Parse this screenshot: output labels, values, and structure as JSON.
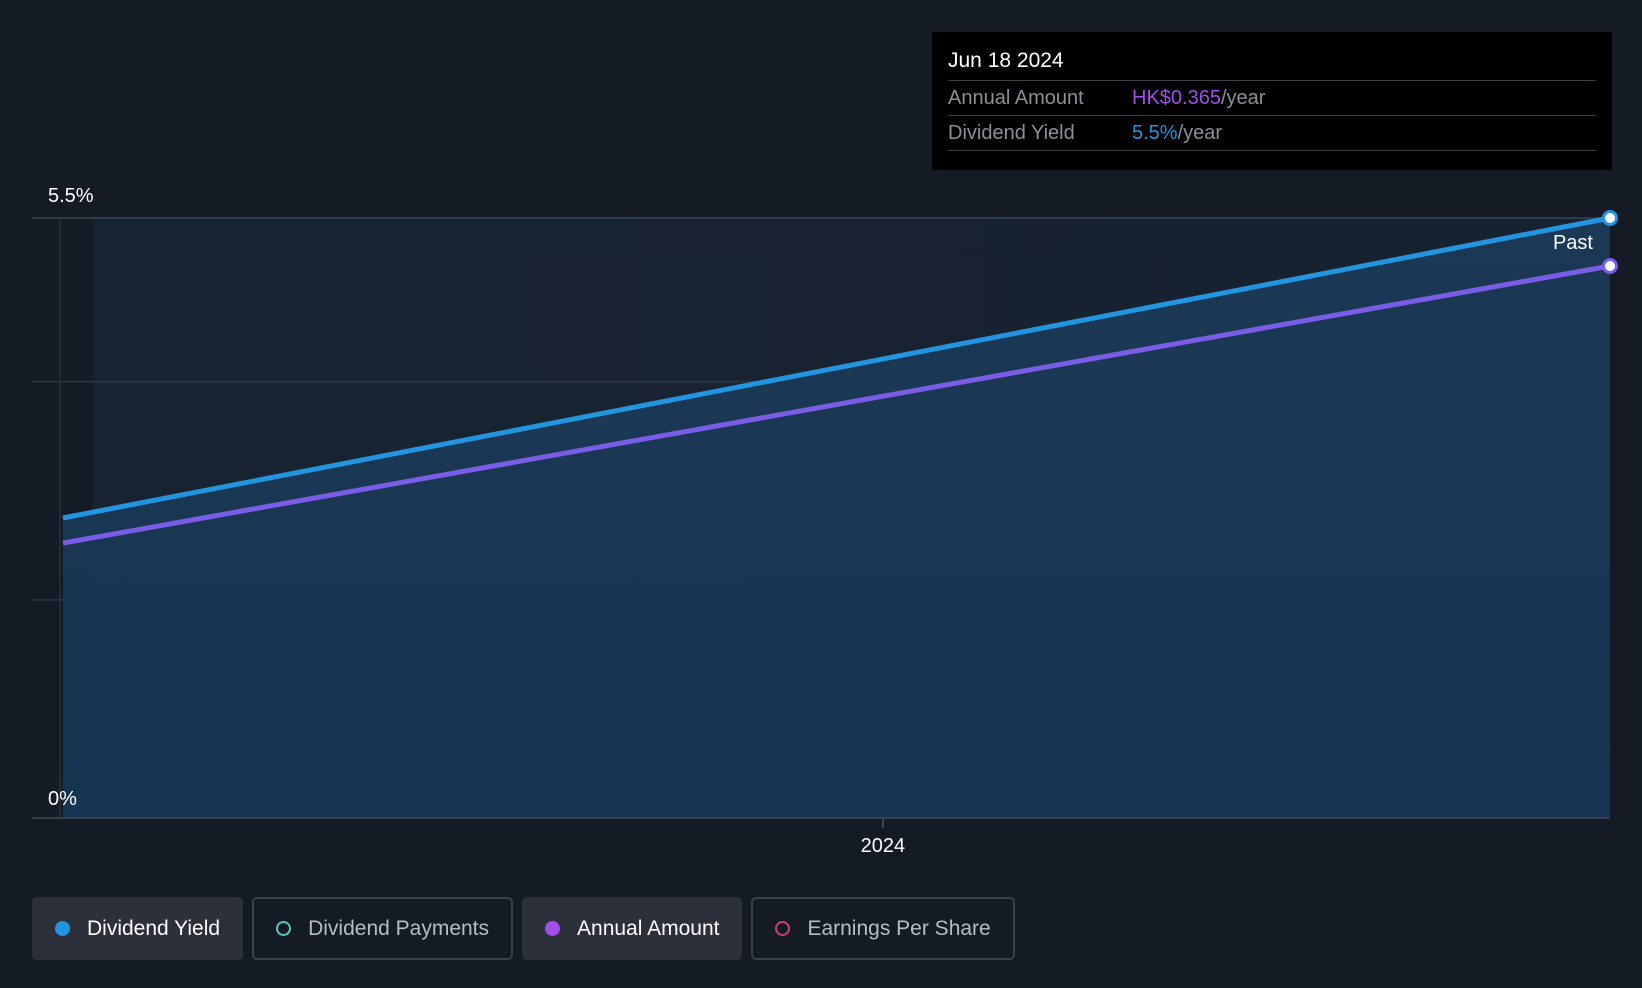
{
  "tooltip": {
    "date": "Jun 18 2024",
    "rows": [
      {
        "label": "Annual Amount",
        "value": "HK$0.365",
        "unit": "/year",
        "color": "#a24ee8"
      },
      {
        "label": "Dividend Yield",
        "value": "5.5%",
        "unit": "/year",
        "color": "#2394df"
      }
    ]
  },
  "legend": [
    {
      "label": "Dividend Yield",
      "active": true,
      "color": "#2394df"
    },
    {
      "label": "Dividend Payments",
      "active": false,
      "color": "#5ac7b8"
    },
    {
      "label": "Annual Amount",
      "active": true,
      "color": "#a24ee8"
    },
    {
      "label": "Earnings Per Share",
      "active": false,
      "color": "#c4456f"
    }
  ],
  "chart_data": {
    "type": "line",
    "title": "",
    "x_range": [
      2023.45,
      2024.47
    ],
    "xticks": [
      {
        "value": 2024.0,
        "label": "2024"
      }
    ],
    "y_range": [
      0,
      5.5
    ],
    "yticks": [
      {
        "value": 5.5,
        "label": "5.5%"
      },
      {
        "value": 0,
        "label": "0%"
      }
    ],
    "gridlines_y": [
      5.5,
      4.0,
      2.0
    ],
    "region_label": "Past",
    "series": [
      {
        "name": "Dividend Yield",
        "color": "#2394df",
        "fill": true,
        "points": [
          {
            "x": 2023.47,
            "y": 2.75
          },
          {
            "x": 2024.47,
            "y": 5.5
          }
        ]
      },
      {
        "name": "Annual Amount",
        "color": "#7b5ce6",
        "fill": false,
        "points": [
          {
            "x": 2023.47,
            "y": 2.52
          },
          {
            "x": 2024.47,
            "y": 5.06
          }
        ]
      }
    ]
  }
}
